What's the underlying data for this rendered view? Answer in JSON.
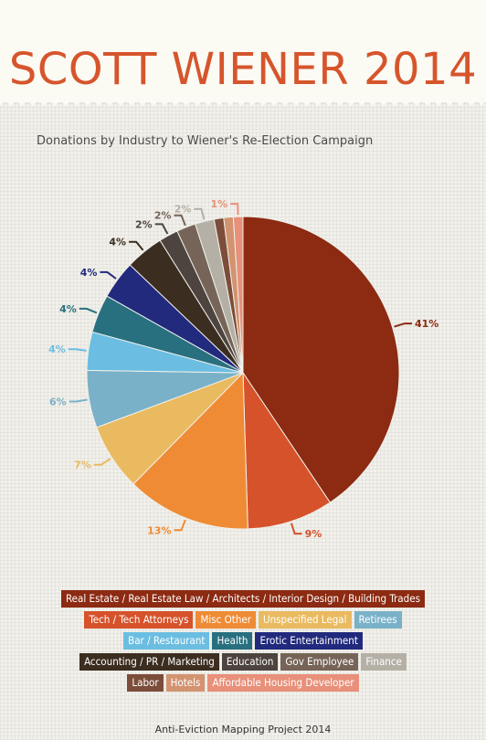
{
  "header": {
    "title": "SCOTT WIENER 2014"
  },
  "chart_data": {
    "type": "pie",
    "title": "Donations by Industry to Wiener's Re-Election Campaign",
    "slices": [
      {
        "label": "Real Estate / Real Estate Law / Architects / Interior Design / Building Trades",
        "value": 41,
        "display": "41%",
        "color": "#8c2a12"
      },
      {
        "label": "Tech / Tech Attorneys",
        "value": 9,
        "display": "9%",
        "color": "#d6522a"
      },
      {
        "label": "Misc Other",
        "value": 13,
        "display": "13%",
        "color": "#ef8b35"
      },
      {
        "label": "Unspecified Legal",
        "value": 7,
        "display": "7%",
        "color": "#eaba60"
      },
      {
        "label": "Retirees",
        "value": 6,
        "display": "6%",
        "color": "#79b1c8"
      },
      {
        "label": "Bar / Restaurant",
        "value": 4,
        "display": "4%",
        "color": "#6bbee2"
      },
      {
        "label": "Health",
        "value": 4,
        "display": "4%",
        "color": "#28707f"
      },
      {
        "label": "Erotic Entertainment",
        "value": 4,
        "display": "4%",
        "color": "#222a7d"
      },
      {
        "label": "Accounting / PR / Marketing",
        "value": 4,
        "display": "4%",
        "color": "#3b2d20"
      },
      {
        "label": "Education",
        "value": 2,
        "display": "2%",
        "color": "#4d443f"
      },
      {
        "label": "Gov Employee",
        "value": 2,
        "display": "2%",
        "color": "#766458"
      },
      {
        "label": "Finance",
        "value": 2,
        "display": "2%",
        "color": "#b5b0a6"
      },
      {
        "label": "Labor",
        "value": 1,
        "display": "",
        "color": "#7c4d3a"
      },
      {
        "label": "Hotels",
        "value": 1,
        "display": "",
        "color": "#d39370"
      },
      {
        "label": "Affordable Housing Developer",
        "value": 1,
        "display": "1%",
        "color": "#e8907a"
      }
    ],
    "legend_rows": [
      [
        0
      ],
      [
        1,
        2,
        3,
        4
      ],
      [
        5,
        6,
        7
      ],
      [
        8,
        9,
        10,
        11
      ],
      [
        12,
        13,
        14
      ]
    ]
  },
  "footer": {
    "credit": "Anti-Eviction Mapping Project 2014"
  }
}
